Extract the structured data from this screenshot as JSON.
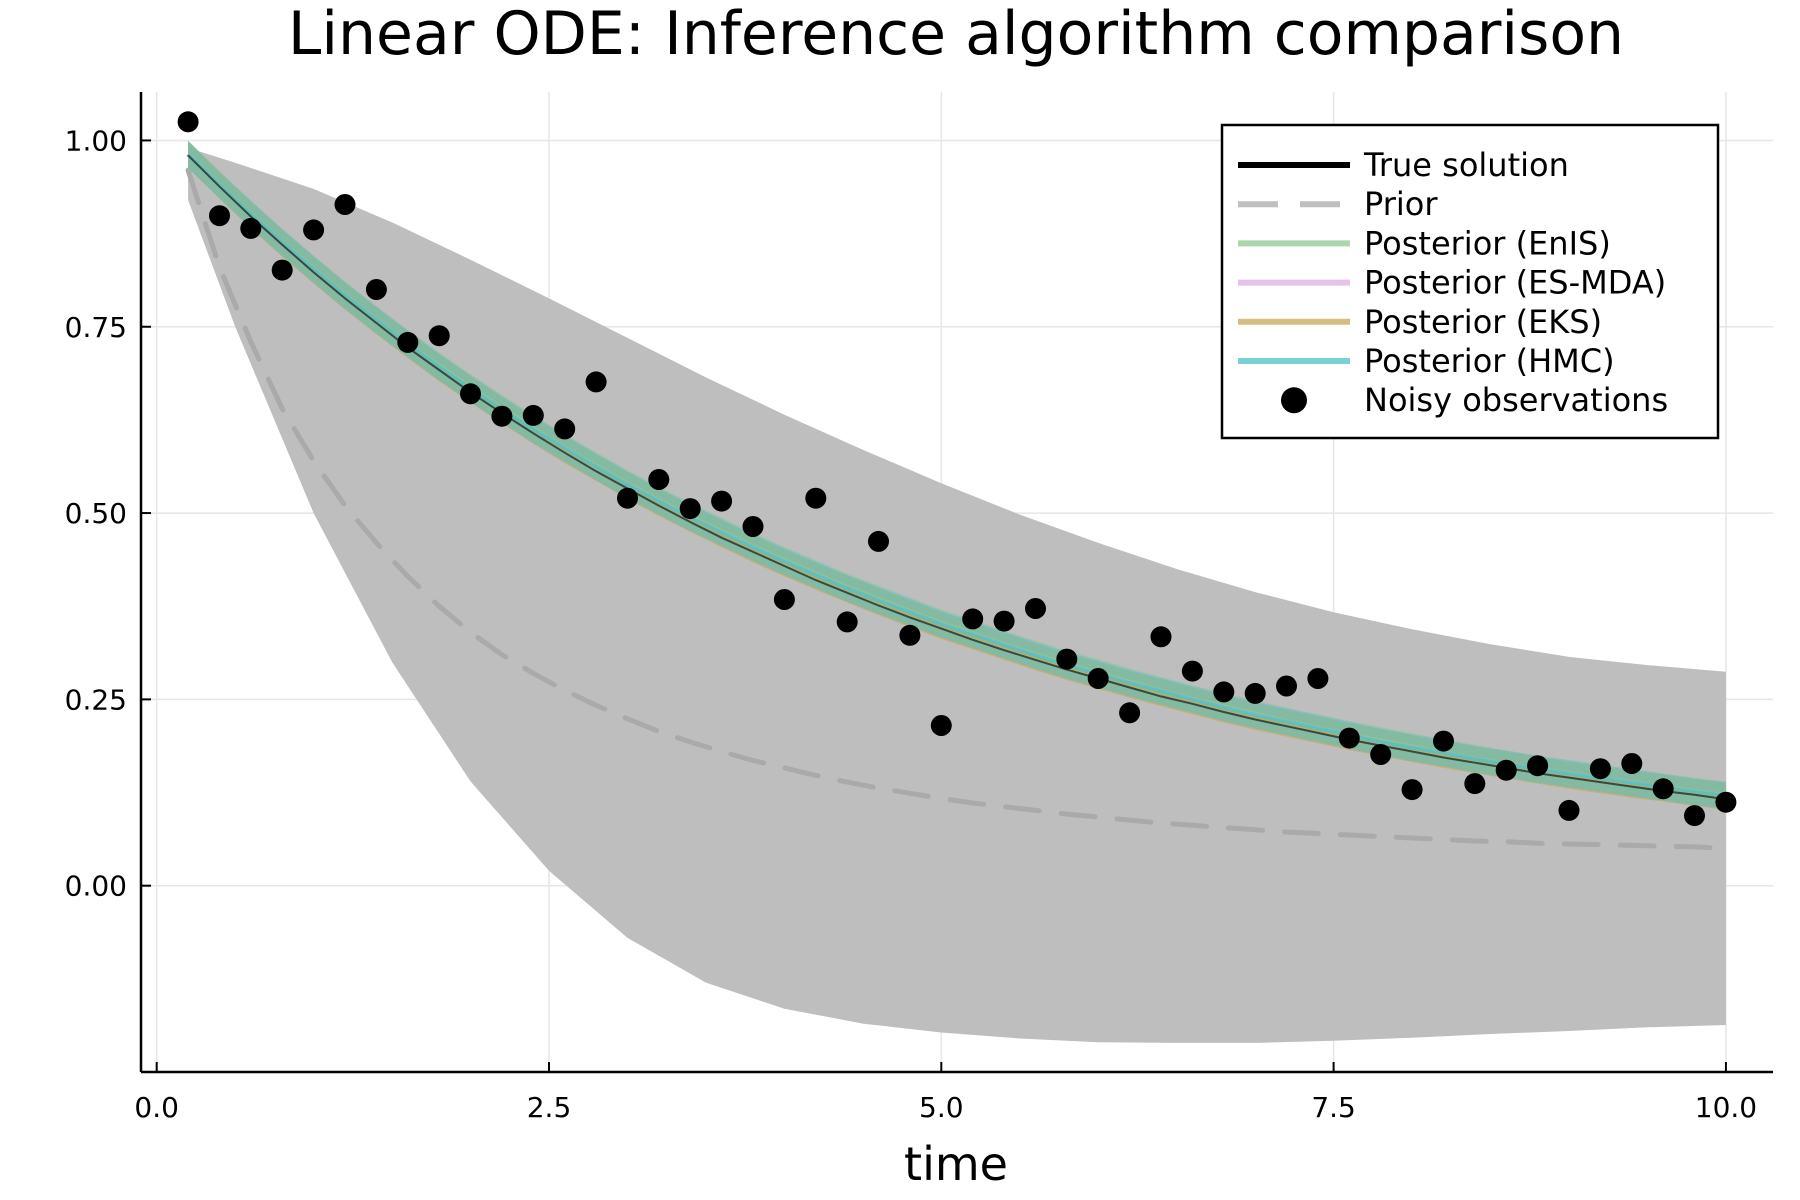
{
  "chart_data": {
    "type": "line",
    "title": "Linear ODE: Inference algorithm comparison",
    "xlabel": "time",
    "ylabel": "",
    "xlim": [
      -0.1,
      10.3
    ],
    "ylim": [
      -0.25,
      1.065
    ],
    "xticks": [
      0.0,
      2.5,
      5.0,
      7.5,
      10.0
    ],
    "xtick_labels": [
      "0.0",
      "2.5",
      "5.0",
      "7.5",
      "10.0"
    ],
    "yticks": [
      0.0,
      0.25,
      0.5,
      0.75,
      1.0
    ],
    "ytick_labels": [
      "0.00",
      "0.25",
      "0.50",
      "0.75",
      "1.00"
    ],
    "grid": true,
    "legend_position": "top-right",
    "colors": {
      "true_solution": "#000000",
      "prior": "#aaaaaa",
      "prior_band": "#bebebe",
      "enis": "#8fc88f",
      "esmda": "#dcaedf",
      "eks": "#c8a85a",
      "hmc": "#4ec2c4",
      "observations": "#000000"
    },
    "legend": [
      {
        "label": "True solution",
        "key": "true_solution",
        "style": "solid"
      },
      {
        "label": "Prior",
        "key": "prior",
        "style": "dashed"
      },
      {
        "label": "Posterior (EnIS)",
        "key": "enis",
        "style": "solid"
      },
      {
        "label": "Posterior (ES-MDA)",
        "key": "esmda",
        "style": "solid"
      },
      {
        "label": "Posterior (EKS)",
        "key": "eks",
        "style": "solid"
      },
      {
        "label": "Posterior (HMC)",
        "key": "hmc",
        "style": "solid"
      },
      {
        "label": "Noisy observations",
        "key": "observations",
        "style": "marker"
      }
    ],
    "x": [
      0.2,
      0.4,
      0.6,
      0.8,
      1.0,
      1.2,
      1.4,
      1.6,
      1.8,
      2.0,
      2.2,
      2.4,
      2.6,
      2.8,
      3.0,
      3.2,
      3.4,
      3.6,
      3.8,
      4.0,
      4.2,
      4.4,
      4.6,
      4.8,
      5.0,
      5.2,
      5.4,
      5.6,
      5.8,
      6.0,
      6.2,
      6.4,
      6.6,
      6.8,
      7.0,
      7.2,
      7.4,
      7.6,
      7.8,
      8.0,
      8.2,
      8.4,
      8.6,
      8.8,
      9.0,
      9.2,
      9.4,
      9.6,
      9.8,
      10.0
    ],
    "series": [
      {
        "name": "True solution",
        "key": "true_solution",
        "values": [
          0.98,
          0.938,
          0.898,
          0.86,
          0.823,
          0.788,
          0.755,
          0.722,
          0.692,
          0.662,
          0.634,
          0.607,
          0.581,
          0.556,
          0.533,
          0.51,
          0.488,
          0.467,
          0.448,
          0.429,
          0.41,
          0.393,
          0.376,
          0.36,
          0.345,
          0.33,
          0.316,
          0.303,
          0.29,
          0.278,
          0.266,
          0.254,
          0.244,
          0.233,
          0.223,
          0.214,
          0.205,
          0.196,
          0.188,
          0.18,
          0.172,
          0.165,
          0.158,
          0.151,
          0.145,
          0.139,
          0.133,
          0.127,
          0.122,
          0.116
        ]
      },
      {
        "name": "Prior",
        "key": "prior",
        "values": [
          0.96,
          0.83,
          0.73,
          0.64,
          0.57,
          0.51,
          0.46,
          0.415,
          0.375,
          0.34,
          0.31,
          0.285,
          0.262,
          0.242,
          0.224,
          0.207,
          0.193,
          0.18,
          0.168,
          0.158,
          0.148,
          0.139,
          0.131,
          0.124,
          0.117,
          0.111,
          0.106,
          0.101,
          0.096,
          0.092,
          0.088,
          0.084,
          0.081,
          0.078,
          0.075,
          0.072,
          0.07,
          0.068,
          0.066,
          0.064,
          0.062,
          0.06,
          0.059,
          0.057,
          0.056,
          0.055,
          0.054,
          0.053,
          0.052,
          0.05
        ]
      },
      {
        "name": "Posterior (EnIS)",
        "key": "enis",
        "values": [
          0.982,
          0.941,
          0.902,
          0.864,
          0.828,
          0.793,
          0.76,
          0.728,
          0.698,
          0.669,
          0.641,
          0.614,
          0.588,
          0.564,
          0.54,
          0.518,
          0.496,
          0.476,
          0.456,
          0.437,
          0.419,
          0.401,
          0.385,
          0.369,
          0.353,
          0.339,
          0.324,
          0.311,
          0.298,
          0.286,
          0.274,
          0.262,
          0.251,
          0.241,
          0.231,
          0.221,
          0.212,
          0.203,
          0.195,
          0.187,
          0.179,
          0.171,
          0.164,
          0.157,
          0.151,
          0.145,
          0.139,
          0.133,
          0.127,
          0.122
        ]
      },
      {
        "name": "Posterior (ES-MDA)",
        "key": "esmda",
        "values": [
          0.981,
          0.94,
          0.901,
          0.863,
          0.827,
          0.792,
          0.759,
          0.727,
          0.696,
          0.667,
          0.639,
          0.612,
          0.587,
          0.562,
          0.538,
          0.516,
          0.494,
          0.474,
          0.454,
          0.435,
          0.417,
          0.399,
          0.383,
          0.367,
          0.351,
          0.337,
          0.323,
          0.309,
          0.296,
          0.284,
          0.272,
          0.261,
          0.25,
          0.239,
          0.229,
          0.22,
          0.211,
          0.202,
          0.193,
          0.185,
          0.178,
          0.17,
          0.163,
          0.156,
          0.15,
          0.144,
          0.138,
          0.132,
          0.126,
          0.121
        ]
      },
      {
        "name": "Posterior (EKS)",
        "key": "eks",
        "values": [
          0.981,
          0.94,
          0.9,
          0.862,
          0.826,
          0.791,
          0.758,
          0.726,
          0.695,
          0.666,
          0.638,
          0.611,
          0.585,
          0.561,
          0.537,
          0.514,
          0.493,
          0.472,
          0.452,
          0.433,
          0.415,
          0.398,
          0.381,
          0.365,
          0.349,
          0.335,
          0.321,
          0.307,
          0.294,
          0.282,
          0.27,
          0.259,
          0.248,
          0.237,
          0.227,
          0.218,
          0.209,
          0.2,
          0.192,
          0.184,
          0.176,
          0.169,
          0.162,
          0.155,
          0.148,
          0.142,
          0.136,
          0.131,
          0.125,
          0.12
        ]
      },
      {
        "name": "Posterior (HMC)",
        "key": "hmc",
        "values": [
          0.981,
          0.94,
          0.901,
          0.863,
          0.827,
          0.792,
          0.759,
          0.727,
          0.696,
          0.667,
          0.639,
          0.612,
          0.587,
          0.562,
          0.538,
          0.516,
          0.494,
          0.474,
          0.454,
          0.435,
          0.417,
          0.399,
          0.383,
          0.367,
          0.351,
          0.337,
          0.323,
          0.309,
          0.296,
          0.284,
          0.272,
          0.261,
          0.25,
          0.239,
          0.229,
          0.22,
          0.211,
          0.202,
          0.193,
          0.185,
          0.178,
          0.17,
          0.163,
          0.156,
          0.15,
          0.144,
          0.138,
          0.132,
          0.126,
          0.121
        ]
      }
    ],
    "prior_band": {
      "x": [
        0.2,
        0.5,
        1.0,
        1.5,
        2.0,
        2.5,
        3.0,
        3.5,
        4.0,
        4.5,
        5.0,
        5.5,
        6.0,
        6.5,
        7.0,
        7.5,
        8.0,
        8.5,
        9.0,
        9.5,
        10.0
      ],
      "upper": [
        0.99,
        0.97,
        0.935,
        0.89,
        0.84,
        0.788,
        0.735,
        0.682,
        0.632,
        0.585,
        0.54,
        0.498,
        0.46,
        0.425,
        0.394,
        0.367,
        0.344,
        0.324,
        0.307,
        0.296,
        0.287
      ],
      "lower": [
        0.92,
        0.75,
        0.5,
        0.3,
        0.14,
        0.02,
        -0.07,
        -0.13,
        -0.165,
        -0.185,
        -0.197,
        -0.205,
        -0.21,
        -0.211,
        -0.211,
        -0.208,
        -0.204,
        -0.199,
        -0.195,
        -0.19,
        -0.187
      ]
    },
    "band_half_width": 0.018,
    "observations": {
      "name": "Noisy observations",
      "x": [
        0.2,
        0.4,
        0.6,
        0.8,
        1.0,
        1.2,
        1.4,
        1.6,
        1.8,
        2.0,
        2.2,
        2.4,
        2.6,
        2.8,
        3.0,
        3.2,
        3.4,
        3.6,
        3.8,
        4.0,
        4.2,
        4.4,
        4.6,
        4.8,
        5.0,
        5.2,
        5.4,
        5.6,
        5.8,
        6.0,
        6.2,
        6.4,
        6.6,
        6.8,
        7.0,
        7.2,
        7.4,
        7.6,
        7.8,
        8.0,
        8.2,
        8.4,
        8.6,
        8.8,
        9.0,
        9.2,
        9.4,
        9.6,
        9.8,
        10.0
      ],
      "y": [
        1.025,
        0.899,
        0.882,
        0.826,
        0.88,
        0.914,
        0.8,
        0.729,
        0.738,
        0.66,
        0.63,
        0.631,
        0.613,
        0.676,
        0.52,
        0.545,
        0.506,
        0.516,
        0.482,
        0.384,
        0.52,
        0.354,
        0.462,
        0.336,
        0.215,
        0.358,
        0.355,
        0.372,
        0.304,
        0.278,
        0.232,
        0.334,
        0.288,
        0.26,
        0.258,
        0.268,
        0.278,
        0.198,
        0.176,
        0.129,
        0.194,
        0.137,
        0.155,
        0.161,
        0.101,
        0.157,
        0.164,
        0.13,
        0.094,
        0.112
      ]
    }
  }
}
